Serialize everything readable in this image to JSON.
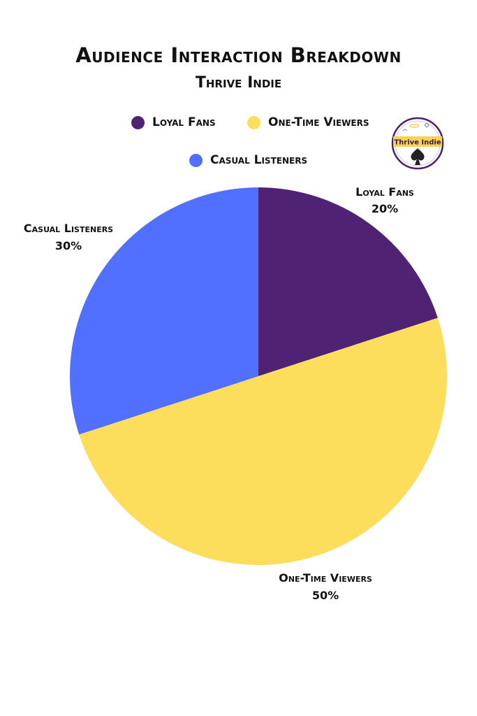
{
  "title": "Audience Interaction Breakdown",
  "subtitle": "Thrive Indie",
  "logo": {
    "text": "Thrive Indie",
    "icon": "thrive-indie-logo-spade-icon",
    "colors": {
      "ring": "#4b1f6f",
      "band": "#f7d354"
    }
  },
  "legend": [
    {
      "label": "Loyal Fans",
      "color": "#4f2274"
    },
    {
      "label": "One-Time Viewers",
      "color": "#fddd5c"
    },
    {
      "label": "Casual Listeners",
      "color": "#5170ff"
    }
  ],
  "chart_data": {
    "type": "pie",
    "title": "Audience Interaction Breakdown",
    "subtitle": "Thrive Indie",
    "start_angle_deg": 0,
    "direction": "clockwise",
    "legend_position": "top",
    "slices": [
      {
        "label": "Loyal Fans",
        "value": 20,
        "value_label": "20%",
        "color": "#4f2274"
      },
      {
        "label": "One-Time Viewers",
        "value": 50,
        "value_label": "50%",
        "color": "#fddd5c"
      },
      {
        "label": "Casual Listeners",
        "value": 30,
        "value_label": "30%",
        "color": "#5170ff"
      }
    ]
  }
}
